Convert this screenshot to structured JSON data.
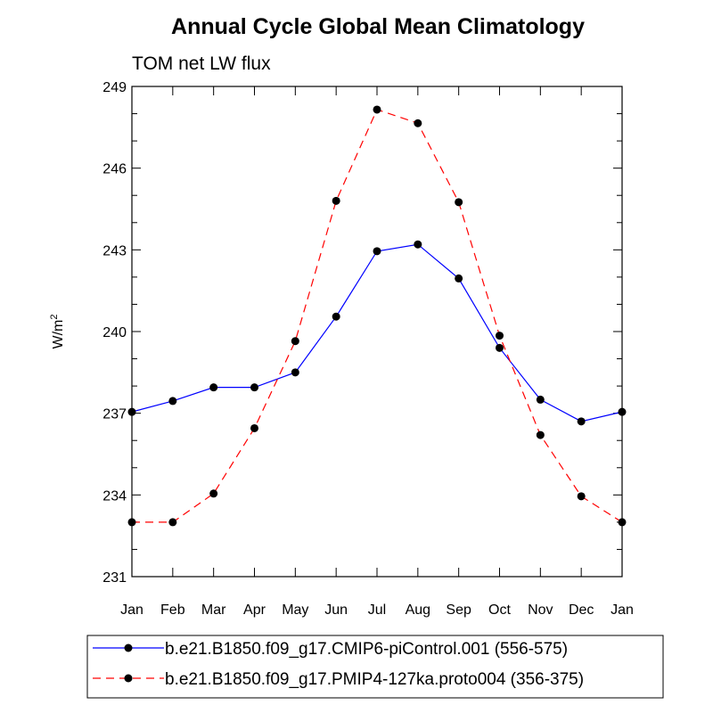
{
  "chart_data": {
    "type": "line",
    "title": "Annual Cycle Global Mean Climatology",
    "subtitle": "TOM net LW flux",
    "xlabel": "",
    "ylabel": "W/m",
    "ylabel_sup": "2",
    "categories": [
      "Jan",
      "Feb",
      "Mar",
      "Apr",
      "May",
      "Jun",
      "Jul",
      "Aug",
      "Sep",
      "Oct",
      "Nov",
      "Dec",
      "Jan"
    ],
    "ylim": [
      231,
      249
    ],
    "yticks": [
      231,
      234,
      237,
      240,
      243,
      246,
      249
    ],
    "series": [
      {
        "name": "b.e21.B1850.f09_g17.CMIP6-piControl.001 (556-575)",
        "color": "#0000ff",
        "dash": "solid",
        "values": [
          237.05,
          237.45,
          237.95,
          237.95,
          238.5,
          240.55,
          242.95,
          243.2,
          241.95,
          239.4,
          237.5,
          236.7,
          237.05
        ]
      },
      {
        "name": "b.e21.B1850.f09_g17.PMIP4-127ka.proto004 (356-375)",
        "color": "#ff0000",
        "dash": "dashed",
        "values": [
          233.0,
          233.0,
          234.05,
          236.45,
          239.65,
          244.8,
          248.15,
          247.65,
          244.75,
          239.85,
          236.2,
          233.95,
          233.0
        ]
      }
    ],
    "legend_position": "bottom"
  }
}
